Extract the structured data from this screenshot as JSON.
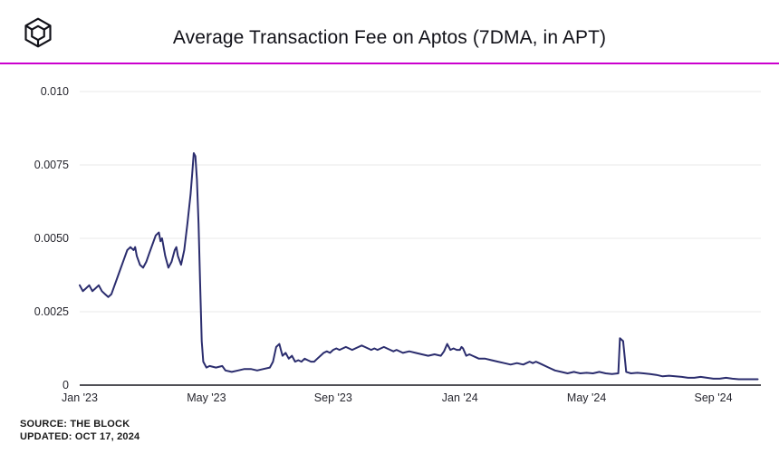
{
  "header": {
    "title": "Average Transaction Fee on Aptos (7DMA, in APT)",
    "logo_name": "the-block-logo"
  },
  "footer": {
    "source": "SOURCE: THE BLOCK",
    "updated": "UPDATED: OCT 17, 2024"
  },
  "colors": {
    "line": "#2b2d6e",
    "divider": "#cb00ce",
    "grid": "#e8e8e8",
    "axis": "#16161f",
    "tick_text": "#26262e",
    "title_text": "#111118"
  },
  "chart_data": {
    "type": "line",
    "title": "Average Transaction Fee on Aptos (7DMA, in APT)",
    "xlabel": "",
    "ylabel": "",
    "x_unit": "months since Jan 2023",
    "y_unit": "APT",
    "grid": true,
    "legend": false,
    "x_range": [
      0,
      21.5
    ],
    "y_range": [
      0,
      0.01
    ],
    "y_ticks": [
      {
        "label": "0",
        "value": 0
      },
      {
        "label": "0.0025",
        "value": 0.0025
      },
      {
        "label": "0.0050",
        "value": 0.005
      },
      {
        "label": "0.0075",
        "value": 0.0075
      },
      {
        "label": "0.010",
        "value": 0.01
      }
    ],
    "x_ticks": [
      {
        "label": "Jan '23",
        "month": 0
      },
      {
        "label": "May '23",
        "month": 4
      },
      {
        "label": "Sep '23",
        "month": 8
      },
      {
        "label": "Jan '24",
        "month": 12
      },
      {
        "label": "May '24",
        "month": 16
      },
      {
        "label": "Sep '24",
        "month": 20
      }
    ],
    "series": [
      {
        "name": "Average Transaction Fee on Aptos (7DMA, in APT)",
        "points": [
          [
            0.0,
            0.0034
          ],
          [
            0.1,
            0.0032
          ],
          [
            0.2,
            0.0033
          ],
          [
            0.3,
            0.0034
          ],
          [
            0.4,
            0.0032
          ],
          [
            0.5,
            0.0033
          ],
          [
            0.6,
            0.0034
          ],
          [
            0.7,
            0.0032
          ],
          [
            0.8,
            0.0031
          ],
          [
            0.9,
            0.003
          ],
          [
            1.0,
            0.0031
          ],
          [
            1.1,
            0.0034
          ],
          [
            1.2,
            0.0037
          ],
          [
            1.3,
            0.004
          ],
          [
            1.4,
            0.0043
          ],
          [
            1.5,
            0.0046
          ],
          [
            1.6,
            0.0047
          ],
          [
            1.7,
            0.0046
          ],
          [
            1.75,
            0.0047
          ],
          [
            1.8,
            0.0044
          ],
          [
            1.9,
            0.0041
          ],
          [
            2.0,
            0.004
          ],
          [
            2.1,
            0.0042
          ],
          [
            2.2,
            0.0045
          ],
          [
            2.3,
            0.0048
          ],
          [
            2.4,
            0.0051
          ],
          [
            2.5,
            0.0052
          ],
          [
            2.55,
            0.0049
          ],
          [
            2.6,
            0.005
          ],
          [
            2.7,
            0.0044
          ],
          [
            2.8,
            0.004
          ],
          [
            2.9,
            0.0042
          ],
          [
            3.0,
            0.0046
          ],
          [
            3.05,
            0.0047
          ],
          [
            3.1,
            0.0044
          ],
          [
            3.2,
            0.0041
          ],
          [
            3.3,
            0.0046
          ],
          [
            3.4,
            0.0055
          ],
          [
            3.5,
            0.0065
          ],
          [
            3.55,
            0.0072
          ],
          [
            3.6,
            0.0079
          ],
          [
            3.65,
            0.0078
          ],
          [
            3.7,
            0.007
          ],
          [
            3.75,
            0.0055
          ],
          [
            3.8,
            0.0035
          ],
          [
            3.85,
            0.0015
          ],
          [
            3.9,
            0.0008
          ],
          [
            4.0,
            0.0006
          ],
          [
            4.1,
            0.00065
          ],
          [
            4.3,
            0.0006
          ],
          [
            4.5,
            0.00065
          ],
          [
            4.6,
            0.0005
          ],
          [
            4.8,
            0.00045
          ],
          [
            5.0,
            0.0005
          ],
          [
            5.2,
            0.00055
          ],
          [
            5.4,
            0.00055
          ],
          [
            5.6,
            0.0005
          ],
          [
            5.8,
            0.00055
          ],
          [
            6.0,
            0.0006
          ],
          [
            6.1,
            0.0008
          ],
          [
            6.2,
            0.0013
          ],
          [
            6.3,
            0.0014
          ],
          [
            6.35,
            0.0012
          ],
          [
            6.4,
            0.001
          ],
          [
            6.5,
            0.0011
          ],
          [
            6.6,
            0.0009
          ],
          [
            6.7,
            0.001
          ],
          [
            6.8,
            0.0008
          ],
          [
            6.9,
            0.00085
          ],
          [
            7.0,
            0.0008
          ],
          [
            7.1,
            0.0009
          ],
          [
            7.2,
            0.00085
          ],
          [
            7.3,
            0.0008
          ],
          [
            7.4,
            0.0008
          ],
          [
            7.5,
            0.0009
          ],
          [
            7.6,
            0.001
          ],
          [
            7.7,
            0.0011
          ],
          [
            7.8,
            0.00115
          ],
          [
            7.9,
            0.0011
          ],
          [
            8.0,
            0.0012
          ],
          [
            8.1,
            0.00125
          ],
          [
            8.2,
            0.0012
          ],
          [
            8.3,
            0.00125
          ],
          [
            8.4,
            0.0013
          ],
          [
            8.5,
            0.00125
          ],
          [
            8.6,
            0.0012
          ],
          [
            8.7,
            0.00125
          ],
          [
            8.8,
            0.0013
          ],
          [
            8.9,
            0.00135
          ],
          [
            9.0,
            0.0013
          ],
          [
            9.1,
            0.00125
          ],
          [
            9.2,
            0.0012
          ],
          [
            9.3,
            0.00125
          ],
          [
            9.4,
            0.0012
          ],
          [
            9.5,
            0.00125
          ],
          [
            9.6,
            0.0013
          ],
          [
            9.7,
            0.00125
          ],
          [
            9.8,
            0.0012
          ],
          [
            9.9,
            0.00115
          ],
          [
            10.0,
            0.0012
          ],
          [
            10.2,
            0.0011
          ],
          [
            10.4,
            0.00115
          ],
          [
            10.6,
            0.0011
          ],
          [
            10.8,
            0.00105
          ],
          [
            11.0,
            0.001
          ],
          [
            11.2,
            0.00105
          ],
          [
            11.4,
            0.001
          ],
          [
            11.5,
            0.00115
          ],
          [
            11.6,
            0.0014
          ],
          [
            11.65,
            0.0013
          ],
          [
            11.7,
            0.0012
          ],
          [
            11.8,
            0.00125
          ],
          [
            11.9,
            0.0012
          ],
          [
            12.0,
            0.0012
          ],
          [
            12.05,
            0.0013
          ],
          [
            12.1,
            0.00125
          ],
          [
            12.2,
            0.001
          ],
          [
            12.3,
            0.00105
          ],
          [
            12.4,
            0.001
          ],
          [
            12.5,
            0.00095
          ],
          [
            12.6,
            0.0009
          ],
          [
            12.8,
            0.0009
          ],
          [
            13.0,
            0.00085
          ],
          [
            13.2,
            0.0008
          ],
          [
            13.4,
            0.00075
          ],
          [
            13.6,
            0.0007
          ],
          [
            13.8,
            0.00075
          ],
          [
            14.0,
            0.0007
          ],
          [
            14.1,
            0.00075
          ],
          [
            14.2,
            0.0008
          ],
          [
            14.3,
            0.00075
          ],
          [
            14.4,
            0.0008
          ],
          [
            14.5,
            0.00075
          ],
          [
            14.6,
            0.0007
          ],
          [
            14.8,
            0.0006
          ],
          [
            15.0,
            0.0005
          ],
          [
            15.2,
            0.00045
          ],
          [
            15.4,
            0.0004
          ],
          [
            15.6,
            0.00045
          ],
          [
            15.8,
            0.0004
          ],
          [
            16.0,
            0.00042
          ],
          [
            16.2,
            0.0004
          ],
          [
            16.4,
            0.00045
          ],
          [
            16.6,
            0.0004
          ],
          [
            16.8,
            0.00038
          ],
          [
            17.0,
            0.0004
          ],
          [
            17.05,
            0.0016
          ],
          [
            17.15,
            0.0015
          ],
          [
            17.25,
            0.00045
          ],
          [
            17.4,
            0.0004
          ],
          [
            17.6,
            0.00042
          ],
          [
            17.8,
            0.0004
          ],
          [
            18.0,
            0.00038
          ],
          [
            18.2,
            0.00035
          ],
          [
            18.4,
            0.0003
          ],
          [
            18.6,
            0.00032
          ],
          [
            18.8,
            0.0003
          ],
          [
            19.0,
            0.00028
          ],
          [
            19.2,
            0.00025
          ],
          [
            19.4,
            0.00025
          ],
          [
            19.6,
            0.00028
          ],
          [
            19.8,
            0.00025
          ],
          [
            20.0,
            0.00022
          ],
          [
            20.2,
            0.00022
          ],
          [
            20.4,
            0.00025
          ],
          [
            20.6,
            0.00022
          ],
          [
            20.8,
            0.0002
          ],
          [
            21.0,
            0.0002
          ],
          [
            21.2,
            0.0002
          ],
          [
            21.4,
            0.0002
          ]
        ]
      }
    ]
  }
}
